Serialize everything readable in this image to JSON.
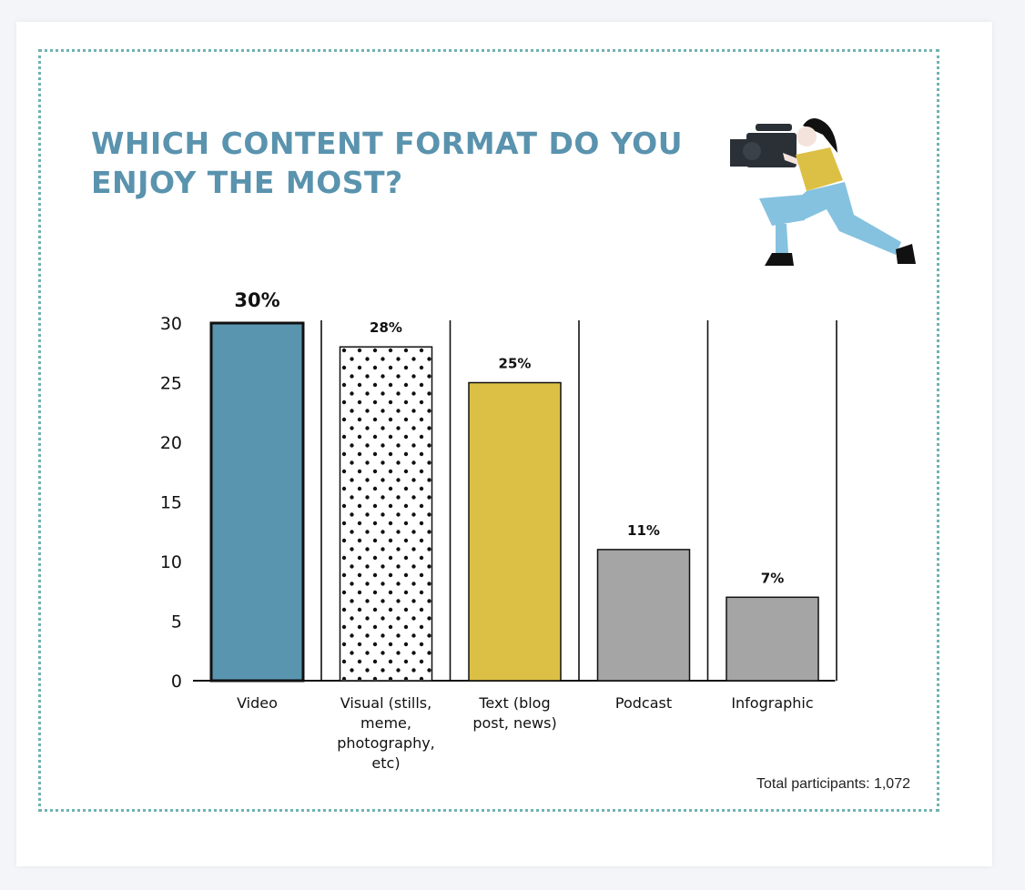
{
  "title": "WHICH CONTENT FORMAT DO YOU ENJOY THE MOST?",
  "footnote": "Total participants: 1,072",
  "colors": {
    "title": "#5a93ae",
    "video": "#5a95b0",
    "text": "#dcc045",
    "gray": "#a6a5a6",
    "frame_dots": "#6fb3b0"
  },
  "chart_data": {
    "type": "bar",
    "categories": [
      [
        "Video"
      ],
      [
        "Visual (stills,",
        "meme,",
        "photography,",
        "etc)"
      ],
      [
        "Text (blog",
        "post, news)"
      ],
      [
        "Podcast"
      ],
      [
        "Infographic"
      ]
    ],
    "values": [
      30,
      28,
      25,
      11,
      7
    ],
    "value_labels": [
      "30%",
      "28%",
      "25%",
      "11%",
      "7%"
    ],
    "bar_fills": [
      "#5a95b0",
      "dots",
      "#dcc045",
      "#a6a5a6",
      "#a6a5a6"
    ],
    "yticks": [
      "0",
      "5",
      "10",
      "15",
      "20",
      "25",
      "30"
    ],
    "ylim": [
      0,
      30
    ],
    "grid": false,
    "legend": "none"
  }
}
